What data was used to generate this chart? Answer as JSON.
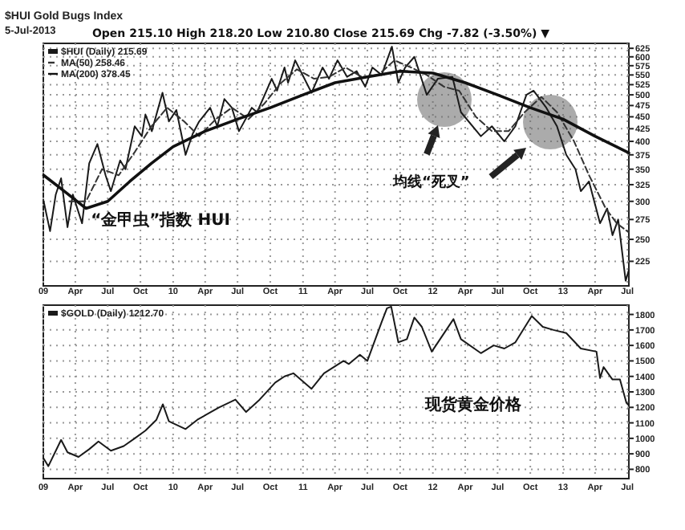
{
  "chart_data": [
    {
      "type": "line",
      "title": "$HUI Gold Bugs Index",
      "subtitle": "5-Jul-2013",
      "annotations": [
        "Open 215.10 High 218.20 Low 210.80 Close 215.69 Chg -7.82 (-3.50%) ▼",
        "“金甲虫”指数 HUI",
        "均线“死叉”"
      ],
      "log": true,
      "grid": true,
      "legend": "top left",
      "marker": "none",
      "xlim": [
        "2009-01-01",
        "2013-07-05"
      ],
      "xticks": [
        {
          "value": "2009-01-01",
          "label": "09"
        },
        {
          "value": "2009-04-01",
          "label": "Apr"
        },
        {
          "value": "2009-07-01",
          "label": "Jul"
        },
        {
          "value": "2009-10-01",
          "label": "Oct"
        },
        {
          "value": "2010-01-01",
          "label": "10"
        },
        {
          "value": "2010-04-01",
          "label": "Apr"
        },
        {
          "value": "2010-07-01",
          "label": "Jul"
        },
        {
          "value": "2010-10-01",
          "label": "Oct"
        },
        {
          "value": "2011-01-01",
          "label": "11"
        },
        {
          "value": "2011-04-01",
          "label": "Apr"
        },
        {
          "value": "2011-07-01",
          "label": "Jul"
        },
        {
          "value": "2011-10-01",
          "label": "Oct"
        },
        {
          "value": "2012-01-01",
          "label": "12"
        },
        {
          "value": "2012-04-01",
          "label": "Apr"
        },
        {
          "value": "2012-07-01",
          "label": "Jul"
        },
        {
          "value": "2012-10-01",
          "label": "Oct"
        },
        {
          "value": "2013-01-01",
          "label": "13"
        },
        {
          "value": "2013-04-01",
          "label": "Apr"
        },
        {
          "value": "2013-07-01",
          "label": "Jul"
        }
      ],
      "ylim": [
        200,
        640
      ],
      "yticks": [
        225,
        250,
        275,
        300,
        325,
        350,
        375,
        400,
        425,
        450,
        475,
        500,
        525,
        550,
        575,
        600,
        625
      ],
      "series": [
        {
          "name": "$HUI (Daily) 215.69",
          "color": "#1a1a1a",
          "line_style": "solid",
          "x": [
            "2009-01-02",
            "2009-01-20",
            "2009-02-05",
            "2009-02-20",
            "2009-03-10",
            "2009-03-25",
            "2009-04-20",
            "2009-05-10",
            "2009-06-02",
            "2009-06-25",
            "2009-07-10",
            "2009-08-05",
            "2009-08-20",
            "2009-09-15",
            "2009-10-05",
            "2009-10-15",
            "2009-11-02",
            "2009-12-02",
            "2009-12-20",
            "2010-01-10",
            "2010-02-05",
            "2010-02-25",
            "2010-03-15",
            "2010-04-15",
            "2010-05-05",
            "2010-05-25",
            "2010-06-15",
            "2010-07-05",
            "2010-08-10",
            "2010-08-25",
            "2010-10-05",
            "2010-10-20",
            "2010-11-10",
            "2010-11-20",
            "2010-12-10",
            "2011-01-25",
            "2011-02-25",
            "2011-03-15",
            "2011-04-08",
            "2011-05-05",
            "2011-06-01",
            "2011-06-25",
            "2011-07-15",
            "2011-08-10",
            "2011-09-08",
            "2011-09-26",
            "2011-10-15",
            "2011-11-10",
            "2011-12-15",
            "2012-01-15",
            "2012-02-25",
            "2012-03-20",
            "2012-05-15",
            "2012-06-15",
            "2012-07-20",
            "2012-08-20",
            "2012-09-20",
            "2012-10-10",
            "2012-11-15",
            "2012-12-15",
            "2013-01-10",
            "2013-02-05",
            "2013-02-20",
            "2013-03-15",
            "2013-04-15",
            "2013-05-05",
            "2013-05-20",
            "2013-06-05",
            "2013-06-26",
            "2013-07-05"
          ],
          "values": [
            300,
            260,
            310,
            335,
            265,
            310,
            270,
            360,
            395,
            340,
            315,
            365,
            350,
            430,
            410,
            455,
            420,
            505,
            440,
            465,
            375,
            415,
            440,
            470,
            430,
            490,
            470,
            420,
            470,
            460,
            540,
            510,
            570,
            530,
            590,
            505,
            570,
            540,
            590,
            545,
            560,
            520,
            570,
            550,
            630,
            530,
            570,
            600,
            500,
            540,
            545,
            460,
            410,
            430,
            400,
            430,
            500,
            510,
            470,
            430,
            375,
            350,
            315,
            330,
            270,
            290,
            255,
            275,
            205,
            215.69
          ]
        },
        {
          "name": "MA(50) 258.46",
          "color": "#333333",
          "line_style": "dashed",
          "x": [
            "2009-03-15",
            "2009-05-01",
            "2009-06-15",
            "2009-08-01",
            "2009-09-15",
            "2009-11-01",
            "2009-12-15",
            "2010-02-01",
            "2010-03-15",
            "2010-05-01",
            "2010-06-15",
            "2010-08-01",
            "2010-09-15",
            "2010-11-01",
            "2010-12-15",
            "2011-02-01",
            "2011-03-15",
            "2011-05-01",
            "2011-06-15",
            "2011-08-01",
            "2011-09-15",
            "2011-11-01",
            "2011-12-15",
            "2012-02-01",
            "2012-03-15",
            "2012-05-01",
            "2012-06-15",
            "2012-08-01",
            "2012-09-15",
            "2012-11-01",
            "2012-12-15",
            "2013-02-01",
            "2013-03-15",
            "2013-05-01",
            "2013-06-01",
            "2013-07-05"
          ],
          "values": [
            300,
            300,
            350,
            340,
            380,
            430,
            470,
            440,
            410,
            445,
            470,
            445,
            480,
            530,
            565,
            540,
            545,
            570,
            545,
            550,
            590,
            570,
            550,
            520,
            510,
            450,
            420,
            420,
            460,
            495,
            460,
            400,
            340,
            290,
            270,
            258.46
          ]
        },
        {
          "name": "MA(200) 378.45",
          "color": "#111111",
          "line_style": "solid",
          "x": [
            "2009-01-02",
            "2009-03-01",
            "2009-05-01",
            "2009-07-01",
            "2009-09-01",
            "2009-11-01",
            "2010-01-01",
            "2010-04-01",
            "2010-07-01",
            "2010-10-01",
            "2011-01-01",
            "2011-04-01",
            "2011-07-01",
            "2011-10-01",
            "2012-01-01",
            "2012-04-01",
            "2012-07-01",
            "2012-10-01",
            "2013-01-01",
            "2013-04-01",
            "2013-07-05"
          ],
          "values": [
            340,
            315,
            290,
            300,
            330,
            360,
            390,
            420,
            445,
            470,
            500,
            530,
            545,
            560,
            555,
            530,
            500,
            470,
            445,
            410,
            378.45
          ]
        }
      ]
    },
    {
      "type": "line",
      "annotations": [
        "现货黄金价格"
      ],
      "grid": true,
      "legend": "top left",
      "marker": "none",
      "xlim": [
        "2009-01-01",
        "2013-07-05"
      ],
      "xticks": [
        {
          "value": "2009-01-01",
          "label": "09"
        },
        {
          "value": "2009-04-01",
          "label": "Apr"
        },
        {
          "value": "2009-07-01",
          "label": "Jul"
        },
        {
          "value": "2009-10-01",
          "label": "Oct"
        },
        {
          "value": "2010-01-01",
          "label": "10"
        },
        {
          "value": "2010-04-01",
          "label": "Apr"
        },
        {
          "value": "2010-07-01",
          "label": "Jul"
        },
        {
          "value": "2010-10-01",
          "label": "Oct"
        },
        {
          "value": "2011-01-01",
          "label": "11"
        },
        {
          "value": "2011-04-01",
          "label": "Apr"
        },
        {
          "value": "2011-07-01",
          "label": "Jul"
        },
        {
          "value": "2011-10-01",
          "label": "Oct"
        },
        {
          "value": "2012-01-01",
          "label": "12"
        },
        {
          "value": "2012-04-01",
          "label": "Apr"
        },
        {
          "value": "2012-07-01",
          "label": "Jul"
        },
        {
          "value": "2012-10-01",
          "label": "Oct"
        },
        {
          "value": "2013-01-01",
          "label": "13"
        },
        {
          "value": "2013-04-01",
          "label": "Apr"
        },
        {
          "value": "2013-07-01",
          "label": "Jul"
        }
      ],
      "ylim": [
        740,
        1860
      ],
      "yticks": [
        800,
        900,
        1000,
        1100,
        1200,
        1300,
        1400,
        1500,
        1600,
        1700,
        1800
      ],
      "series": [
        {
          "name": "$GOLD (Daily) 1212.70",
          "color": "#1a1a1a",
          "line_style": "solid",
          "x": [
            "2009-01-02",
            "2009-01-15",
            "2009-02-20",
            "2009-03-10",
            "2009-04-10",
            "2009-05-10",
            "2009-06-05",
            "2009-07-10",
            "2009-08-15",
            "2009-09-15",
            "2009-10-15",
            "2009-11-15",
            "2009-12-03",
            "2009-12-20",
            "2010-02-05",
            "2010-03-10",
            "2010-05-10",
            "2010-06-25",
            "2010-07-25",
            "2010-09-01",
            "2010-10-15",
            "2010-11-10",
            "2010-12-05",
            "2011-01-25",
            "2011-03-01",
            "2011-04-25",
            "2011-05-10",
            "2011-06-10",
            "2011-07-01",
            "2011-08-10",
            "2011-08-25",
            "2011-09-06",
            "2011-09-26",
            "2011-10-20",
            "2011-11-10",
            "2011-12-01",
            "2011-12-29",
            "2012-02-28",
            "2012-03-20",
            "2012-05-15",
            "2012-06-20",
            "2012-07-20",
            "2012-08-20",
            "2012-10-05",
            "2012-11-05",
            "2012-12-05",
            "2013-01-10",
            "2013-02-20",
            "2013-04-05",
            "2013-04-15",
            "2013-04-25",
            "2013-05-20",
            "2013-06-10",
            "2013-06-28",
            "2013-07-05"
          ],
          "values": [
            870,
            820,
            990,
            910,
            880,
            930,
            980,
            920,
            950,
            1000,
            1050,
            1120,
            1220,
            1110,
            1060,
            1120,
            1200,
            1250,
            1170,
            1250,
            1360,
            1400,
            1420,
            1320,
            1420,
            1500,
            1480,
            1540,
            1500,
            1750,
            1840,
            1850,
            1620,
            1640,
            1780,
            1720,
            1560,
            1770,
            1640,
            1550,
            1600,
            1580,
            1620,
            1790,
            1720,
            1700,
            1680,
            1580,
            1560,
            1390,
            1460,
            1380,
            1380,
            1230,
            1212.7
          ]
        }
      ]
    }
  ]
}
